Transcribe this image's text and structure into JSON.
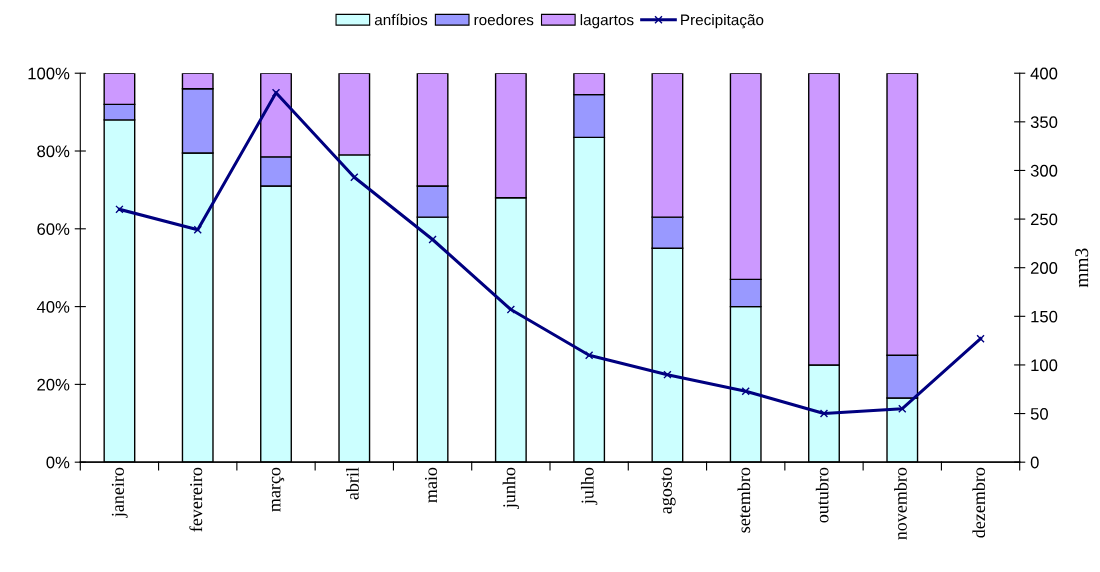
{
  "chart_data": {
    "type": "bar",
    "stacked": true,
    "categories": [
      "janeiro",
      "fevereiro",
      "março",
      "abril",
      "maio",
      "junho",
      "julho",
      "agosto",
      "setembro",
      "outubro",
      "novembro",
      "dezembro"
    ],
    "series": [
      {
        "name": "anfíbios",
        "color": "#ccffff",
        "values": [
          88,
          79.5,
          71,
          79,
          63,
          68,
          83.5,
          55,
          40,
          25,
          16.5,
          null
        ]
      },
      {
        "name": "roedores",
        "color": "#9999ff",
        "values": [
          4,
          16.5,
          7.5,
          0,
          8,
          0,
          11,
          8,
          7,
          0,
          11,
          null
        ]
      },
      {
        "name": "lagartos",
        "color": "#cc99ff",
        "values": [
          8,
          4,
          21.5,
          21,
          29,
          32,
          5.5,
          37,
          53,
          75,
          72.5,
          null
        ]
      },
      {
        "name": "Precipitação",
        "type": "line",
        "axis": "y2",
        "color": "#000080",
        "marker": "cross",
        "line_style": "solid",
        "values": [
          260,
          239,
          380,
          293,
          229,
          157,
          110,
          90,
          73,
          50,
          55,
          127
        ]
      }
    ],
    "ylim": [
      0,
      100
    ],
    "yticks": [
      {
        "value": 0,
        "label": "0%"
      },
      {
        "value": 20,
        "label": "20%"
      },
      {
        "value": 40,
        "label": "40%"
      },
      {
        "value": 60,
        "label": "60%"
      },
      {
        "value": 80,
        "label": "80%"
      },
      {
        "value": 100,
        "label": "100%"
      }
    ],
    "y2lim": [
      0,
      400
    ],
    "y2ticks": [
      0,
      50,
      100,
      150,
      200,
      250,
      300,
      350,
      400
    ],
    "y2label": "mm3",
    "grid": false,
    "legend": "top"
  }
}
